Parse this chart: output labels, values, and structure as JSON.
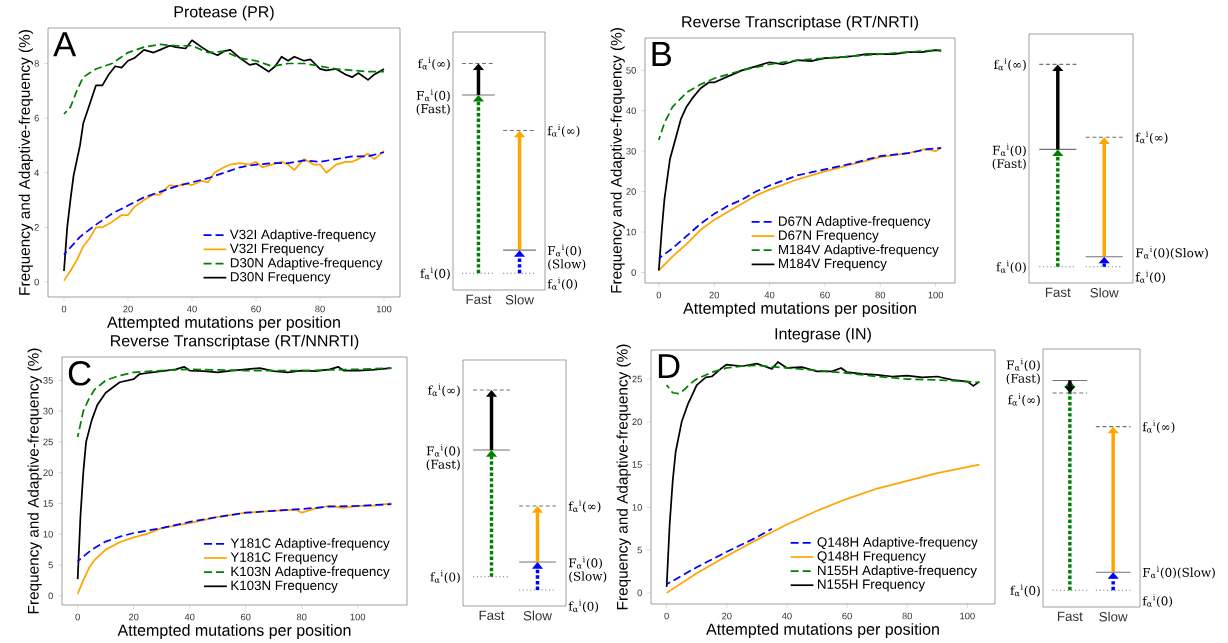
{
  "chart_data": [
    {
      "type": "line",
      "title": "Protease (PR)",
      "xlabel": "Attempted mutations per position",
      "ylabel": "Frequency and  Adaptive-frequency (%)",
      "xlim": [
        -5,
        105
      ],
      "ylim": [
        -0.55,
        9.3
      ],
      "xticks": [
        0,
        20,
        40,
        60,
        80,
        100
      ],
      "yticks": [
        0,
        2,
        4,
        6,
        8
      ],
      "legend": "bottom right",
      "grid": false,
      "annotations": [
        "A"
      ],
      "series": [
        {
          "name": "V32I Adaptive-frequency",
          "color": "#0000ff",
          "line_style": "dashed",
          "x": [
            0,
            5,
            10,
            15,
            20,
            25,
            30,
            35,
            40,
            45,
            50,
            55,
            60,
            65,
            70,
            75,
            80,
            85,
            90,
            95,
            100
          ],
          "values": [
            1.0,
            1.65,
            2.1,
            2.5,
            2.8,
            3.1,
            3.3,
            3.5,
            3.65,
            3.8,
            4.0,
            4.2,
            4.3,
            4.35,
            4.35,
            4.45,
            4.4,
            4.5,
            4.6,
            4.6,
            4.75
          ]
        },
        {
          "name": "V32I Frequency",
          "color": "#ffa500",
          "line_style": "solid",
          "x": [
            0,
            2,
            4,
            6,
            8,
            10,
            12,
            15,
            18,
            20,
            22,
            25,
            28,
            30,
            33,
            35,
            38,
            40,
            43,
            45,
            47,
            50,
            52,
            55,
            58,
            60,
            62,
            65,
            68,
            70,
            72,
            75,
            78,
            80,
            82,
            85,
            88,
            90,
            92,
            95,
            97,
            100
          ],
          "values": [
            0.05,
            0.4,
            0.8,
            1.3,
            1.6,
            2.0,
            2.0,
            2.2,
            2.45,
            2.45,
            2.75,
            3.0,
            3.2,
            3.2,
            3.55,
            3.5,
            3.6,
            3.55,
            3.7,
            3.65,
            4.0,
            4.2,
            4.3,
            4.35,
            4.3,
            4.4,
            4.2,
            4.3,
            4.4,
            4.3,
            4.1,
            4.5,
            4.3,
            4.3,
            4.0,
            4.3,
            4.4,
            4.4,
            4.5,
            4.7,
            4.5,
            4.8
          ]
        },
        {
          "name": "D30N Adaptive-frequency",
          "color": "#008000",
          "line_style": "dashed",
          "x": [
            0,
            2,
            4,
            6,
            8,
            10,
            15,
            20,
            25,
            30,
            35,
            40,
            45,
            50,
            55,
            60,
            65,
            70,
            75,
            80,
            85,
            90,
            95,
            100
          ],
          "values": [
            6.15,
            6.4,
            7.0,
            7.5,
            7.65,
            7.8,
            8.0,
            8.4,
            8.6,
            8.7,
            8.65,
            8.65,
            8.4,
            8.45,
            8.2,
            8.1,
            7.9,
            8.0,
            8.0,
            7.9,
            7.8,
            7.75,
            7.7,
            7.7
          ]
        },
        {
          "name": "D30N Frequency",
          "color": "#000000",
          "line_style": "solid",
          "x": [
            0,
            1,
            2,
            3,
            5,
            6,
            8,
            10,
            12,
            14,
            16,
            18,
            20,
            22,
            25,
            28,
            30,
            33,
            35,
            38,
            40,
            43,
            45,
            48,
            50,
            52,
            55,
            58,
            60,
            62,
            64,
            66,
            68,
            70,
            72,
            75,
            77,
            80,
            82,
            85,
            88,
            90,
            92,
            95,
            97,
            100
          ],
          "values": [
            0.4,
            2.0,
            3.0,
            3.9,
            5.0,
            5.8,
            6.5,
            7.2,
            7.2,
            7.6,
            7.9,
            7.85,
            8.1,
            8.2,
            8.5,
            8.4,
            8.5,
            8.65,
            8.6,
            8.55,
            8.85,
            8.6,
            8.45,
            8.3,
            8.45,
            8.5,
            8.2,
            7.95,
            8.0,
            7.85,
            7.7,
            7.9,
            8.25,
            8.1,
            8.25,
            8.1,
            8.15,
            7.8,
            7.75,
            7.8,
            7.6,
            7.5,
            7.65,
            7.4,
            7.6,
            7.8
          ]
        }
      ]
    },
    {
      "type": "other",
      "categories": [
        "Fast",
        "Slow"
      ],
      "annotations": [
        "f$_{α}$$^{i}$(∞)",
        "F$_{α}$$^{i}$(0) (Fast)",
        "f$_{α}$$^{i}$(0)",
        "f$_{α}$$^{i}$(∞)",
        "F$_{α}$$^{i}$(0) (Slow)",
        "f$_{α}$$^{i}$(0)"
      ]
    },
    {
      "type": "line",
      "title": "Reverse Transcriptase (RT/NRTI)",
      "xlabel": "Attempted mutations per position",
      "ylabel": "Frequency and  Adaptive-frequency (%)",
      "xlim": [
        -5,
        107
      ],
      "ylim": [
        -2.6,
        58
      ],
      "xticks": [
        0,
        20,
        40,
        60,
        80,
        100
      ],
      "yticks": [
        0,
        10,
        20,
        30,
        40,
        50
      ],
      "legend": "bottom right",
      "grid": false,
      "annotations": [
        "B"
      ],
      "series": [
        {
          "name": "D67N Adaptive-frequency",
          "color": "#0000ff",
          "line_style": "dashed",
          "x": [
            0,
            5,
            10,
            15,
            20,
            25,
            30,
            35,
            40,
            50,
            60,
            70,
            80,
            90,
            97,
            102
          ],
          "values": [
            3.5,
            6,
            9,
            12,
            14.5,
            16.5,
            18,
            20,
            21.5,
            24,
            25.5,
            27,
            28.8,
            29.5,
            30.5,
            30.8
          ]
        },
        {
          "name": "D67N Frequency",
          "color": "#ffa500",
          "line_style": "solid",
          "x": [
            0,
            5,
            10,
            15,
            20,
            25,
            30,
            35,
            40,
            50,
            60,
            70,
            80,
            90,
            96,
            100,
            102
          ],
          "values": [
            0.5,
            4,
            7,
            10.5,
            13,
            15,
            17,
            19,
            20.5,
            23,
            25,
            26.8,
            28.5,
            29.5,
            30.5,
            30,
            30.8
          ]
        },
        {
          "name": "M184V Adaptive-frequency",
          "color": "#008000",
          "line_style": "dashed",
          "x": [
            0,
            2,
            5,
            10,
            15,
            20,
            30,
            40,
            50,
            60,
            70,
            80,
            90,
            100,
            102
          ],
          "values": [
            32.8,
            37,
            41,
            44.5,
            46.5,
            48,
            50,
            51.5,
            52.5,
            53,
            53.5,
            54,
            54.5,
            55,
            55
          ]
        },
        {
          "name": "M184V Frequency",
          "color": "#000000",
          "line_style": "solid",
          "x": [
            0,
            1,
            2,
            3,
            4,
            6,
            8,
            10,
            12,
            15,
            18,
            20,
            25,
            30,
            35,
            40,
            45,
            50,
            55,
            60,
            65,
            70,
            75,
            80,
            85,
            90,
            95,
            100,
            102
          ],
          "values": [
            0.5,
            10,
            18,
            23,
            28,
            33,
            38,
            41,
            43,
            45.5,
            47,
            47,
            48.5,
            50,
            51,
            52,
            51.5,
            52.5,
            52.3,
            53,
            53.2,
            53.5,
            54,
            54,
            54,
            54.5,
            54.5,
            55,
            54.8
          ]
        }
      ]
    },
    {
      "type": "other",
      "categories": [
        "Fast",
        "Slow"
      ],
      "annotations": [
        "f$_{α}$$^{i}$(∞)",
        "F$_{α}$$^{i}$(0) (Fast)",
        "f$_{α}$$^{i}$(0)",
        "f$_{α}$$^{i}$(∞)",
        "F$_{α}$$^{i}$(0)(Slow)",
        "f$_{α}$$^{i}$(0)"
      ]
    },
    {
      "type": "line",
      "title": "Reverse Transcriptase (RT/NNRTI)",
      "xlabel": "Attempted mutations per position",
      "ylabel": "Frequency and  Adaptive-frequency (%)",
      "xlim": [
        -5.6,
        117.6
      ],
      "ylim": [
        -1.5,
        38.8
      ],
      "xticks": [
        0,
        20,
        40,
        60,
        80,
        100
      ],
      "yticks": [
        0,
        5,
        10,
        15,
        20,
        25,
        30,
        35
      ],
      "legend": "bottom right",
      "grid": false,
      "annotations": [
        "C"
      ],
      "series": [
        {
          "name": "Y181C Adaptive-frequency",
          "color": "#0000ff",
          "line_style": "dashed",
          "x": [
            0,
            5,
            10,
            15,
            20,
            30,
            40,
            50,
            60,
            70,
            80,
            90,
            100,
            112
          ],
          "values": [
            5.6,
            7.5,
            8.8,
            9.6,
            10.2,
            11,
            12,
            12.8,
            13.5,
            13.8,
            14.1,
            14.5,
            14.6,
            14.9
          ]
        },
        {
          "name": "Y181C Frequency",
          "color": "#ffa500",
          "line_style": "solid",
          "x": [
            0,
            2,
            4,
            6,
            10,
            15,
            20,
            25,
            30,
            40,
            50,
            60,
            70,
            78,
            80,
            85,
            90,
            95,
            100,
            105,
            112
          ],
          "values": [
            0.3,
            2.5,
            4.5,
            5.8,
            7.5,
            8.7,
            9.5,
            10.1,
            11,
            11.8,
            12.8,
            13.5,
            13.8,
            14,
            13.5,
            14.2,
            14.6,
            14.3,
            14.6,
            14.6,
            15
          ]
        },
        {
          "name": "K103N Adaptive-frequency",
          "color": "#008000",
          "line_style": "dashed",
          "x": [
            0,
            2,
            4,
            6,
            10,
            15,
            20,
            30,
            40,
            60,
            80,
            100,
            112
          ],
          "values": [
            25.8,
            30,
            32,
            33.5,
            35,
            35.8,
            36.3,
            36.6,
            36.8,
            36.6,
            36.6,
            36.8,
            37
          ]
        },
        {
          "name": "K103N Frequency",
          "color": "#000000",
          "line_style": "solid",
          "x": [
            0,
            1,
            2,
            3,
            5,
            7,
            10,
            15,
            20,
            22,
            25,
            30,
            35,
            38,
            40,
            45,
            50,
            55,
            60,
            65,
            70,
            75,
            80,
            85,
            90,
            93,
            95,
            100,
            105,
            112
          ],
          "values": [
            2.7,
            13,
            20,
            25,
            28.5,
            31,
            33,
            34.7,
            35.2,
            36,
            36.2,
            36.5,
            36.8,
            37.2,
            36.6,
            36.5,
            36.3,
            36.6,
            36.8,
            37,
            36.5,
            36.3,
            36.6,
            36.5,
            36.8,
            37.2,
            36.6,
            36.6,
            36.7,
            37
          ]
        }
      ]
    },
    {
      "type": "other",
      "categories": [
        "Fast",
        "Slow"
      ],
      "annotations": [
        "f$_{α}$$^{i}$(∞)",
        "F$_{α}$$^{i}$(0) (Fast)",
        "f$_{α}$$^{i}$(0)",
        "f$_{α}$$^{i}$(∞)",
        "F$_{α}$$^{i}$(0) (Slow)",
        "f$_{α}$$^{i}$(0)"
      ]
    },
    {
      "type": "line",
      "title": "Integrase (IN)",
      "xlabel": "Attempted mutations per position",
      "ylabel": "Frequency and  Adaptive-frequency (%)",
      "xlim": [
        -5.2,
        109.2
      ],
      "ylim": [
        -1.3,
        28.4
      ],
      "xticks": [
        0,
        20,
        40,
        60,
        80,
        100
      ],
      "yticks": [
        0,
        5,
        10,
        15,
        20,
        25
      ],
      "legend": "bottom right",
      "grid": false,
      "annotations": [
        "D"
      ],
      "series": [
        {
          "name": "Q148H Adaptive-frequency",
          "color": "#0000ff",
          "line_style": "dashed",
          "x": [
            0,
            10,
            20,
            30,
            35
          ],
          "values": [
            1.0,
            3.0,
            4.8,
            6.5,
            7.5
          ]
        },
        {
          "name": "Q148H Frequency",
          "color": "#ffa500",
          "line_style": "solid",
          "x": [
            0,
            10,
            20,
            30,
            40,
            50,
            60,
            70,
            80,
            90,
            104
          ],
          "values": [
            0,
            2.3,
            4.3,
            6.2,
            8,
            9.6,
            11,
            12.2,
            13.1,
            14,
            15
          ]
        },
        {
          "name": "N155H Adaptive-frequency",
          "color": "#008000",
          "line_style": "dashed",
          "x": [
            0,
            2,
            4,
            6,
            8,
            10,
            15,
            20,
            25,
            30,
            40,
            50,
            60,
            70,
            80,
            90,
            100,
            104
          ],
          "values": [
            24.3,
            23.4,
            23.3,
            23.8,
            24.5,
            25,
            25.8,
            26.3,
            26.5,
            26.6,
            26.3,
            26,
            25.7,
            25.3,
            25,
            24.9,
            24.7,
            24.6
          ]
        },
        {
          "name": "N155H Frequency",
          "color": "#000000",
          "line_style": "solid",
          "x": [
            0,
            1,
            2,
            3,
            5,
            7,
            10,
            13,
            15,
            18,
            20,
            25,
            30,
            35,
            37,
            40,
            45,
            50,
            55,
            58,
            60,
            65,
            70,
            75,
            80,
            85,
            90,
            95,
            100,
            102,
            104
          ],
          "values": [
            0.7,
            8,
            13,
            16.5,
            20,
            22,
            24.3,
            25.2,
            25.3,
            26.2,
            26.7,
            26.5,
            26.8,
            26.2,
            27,
            26.3,
            26.4,
            25.9,
            25.9,
            26.3,
            25.8,
            25.6,
            25.5,
            25.3,
            25.4,
            25.2,
            25.3,
            24.9,
            24.7,
            24.2,
            24.7
          ]
        }
      ]
    },
    {
      "type": "other",
      "categories": [
        "Fast",
        "Slow"
      ],
      "annotations": [
        "F$_{α}$$^{i}$(0) (Fast)",
        "f$_{α}$$^{i}$(∞)",
        "f$_{α}$$^{i}$(0)",
        "f$_{α}$$^{i}$(∞)",
        "F$_{α}$$^{i}$(0)(Slow)",
        "f$_{α}$$^{i}$(0)"
      ]
    }
  ]
}
